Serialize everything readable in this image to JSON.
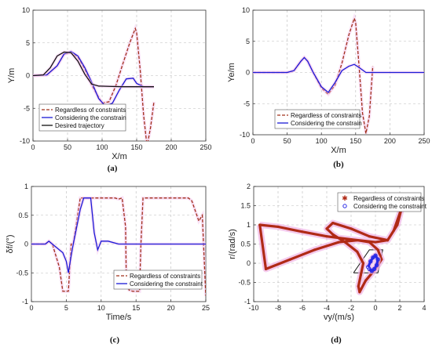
{
  "chart_data": [
    {
      "id": "a",
      "type": "line",
      "caption": "(a)",
      "xlabel": "X/m",
      "ylabel": "Y/m",
      "xlim": [
        0,
        250
      ],
      "ylim": [
        -10,
        10
      ],
      "xticks": [
        0,
        50,
        100,
        150,
        200,
        250
      ],
      "yticks": [
        -10,
        -5,
        0,
        5,
        10
      ],
      "grid": true,
      "legend_position": "lower-left",
      "series": [
        {
          "name": "Regardless of constraints",
          "color": "#a0301a",
          "dash": "4,2",
          "width": 1.3,
          "x": [
            0,
            20,
            35,
            45,
            55,
            65,
            75,
            85,
            100,
            110,
            120,
            130,
            140,
            148,
            150,
            155,
            160,
            165,
            170,
            175
          ],
          "y": [
            0,
            0.1,
            1.5,
            3.3,
            3.5,
            2.8,
            1.0,
            -1.5,
            -4.2,
            -4.0,
            -1.5,
            1.8,
            5.0,
            7.2,
            6.5,
            1.0,
            -6.0,
            -10.8,
            -8.0,
            -4.0
          ]
        },
        {
          "name": "Considering the constrain",
          "color": "#1a1ad6",
          "dash": "",
          "width": 1.3,
          "x": [
            0,
            20,
            35,
            45,
            55,
            65,
            75,
            85,
            95,
            105,
            115,
            125,
            135,
            145,
            150,
            160,
            175
          ],
          "y": [
            0,
            0.1,
            1.5,
            3.3,
            3.7,
            3.0,
            1.2,
            -1.0,
            -3.5,
            -4.7,
            -4.2,
            -2.2,
            -0.5,
            -0.4,
            -1.2,
            -1.7,
            -1.7
          ]
        },
        {
          "name": "Desired trajectory",
          "color": "#111111",
          "dash": "",
          "width": 1.3,
          "x": [
            0,
            15,
            25,
            35,
            45,
            55,
            65,
            75,
            85,
            95,
            110,
            130,
            150,
            175
          ],
          "y": [
            0,
            0.1,
            1.2,
            3.0,
            3.6,
            3.5,
            2.2,
            0.2,
            -1.3,
            -1.6,
            -1.65,
            -1.7,
            -1.7,
            -1.7
          ]
        }
      ]
    },
    {
      "id": "b",
      "type": "line",
      "caption": "(b)",
      "xlabel": "X/m",
      "ylabel": "Ye/m",
      "xlim": [
        0,
        250
      ],
      "ylim": [
        -10,
        10
      ],
      "xticks": [
        0,
        50,
        100,
        150,
        200,
        250
      ],
      "yticks": [
        -10,
        -5,
        0,
        5,
        10
      ],
      "grid": true,
      "legend_position": "lower-left",
      "series": [
        {
          "name": "Regardless of constraints",
          "color": "#a0301a",
          "dash": "4,2",
          "width": 1.3,
          "x": [
            0,
            50,
            60,
            70,
            75,
            80,
            88,
            100,
            110,
            120,
            130,
            140,
            148,
            150,
            155,
            160,
            165,
            170,
            175
          ],
          "y": [
            0,
            0,
            0.3,
            1.8,
            2.4,
            1.8,
            0,
            -2.5,
            -3.5,
            -2.0,
            1.5,
            6.0,
            8.7,
            8.0,
            1.0,
            -6.5,
            -9.8,
            -7.0,
            1.0
          ]
        },
        {
          "name": "Considering the constrain",
          "color": "#1a1ad6",
          "dash": "",
          "width": 1.3,
          "x": [
            0,
            50,
            60,
            70,
            75,
            80,
            88,
            100,
            110,
            120,
            130,
            140,
            148,
            155,
            165,
            175,
            250
          ],
          "y": [
            0,
            0,
            0.3,
            1.8,
            2.4,
            1.8,
            0,
            -2.3,
            -3.2,
            -1.6,
            0.3,
            1.0,
            1.3,
            0.8,
            0,
            0,
            0
          ]
        }
      ]
    },
    {
      "id": "c",
      "type": "line",
      "caption": "(c)",
      "xlabel": "Time/s",
      "ylabel": "δf/(°)",
      "xlim": [
        0,
        25
      ],
      "ylim": [
        -1,
        1
      ],
      "xticks": [
        0,
        5,
        10,
        15,
        20,
        25
      ],
      "yticks": [
        -1,
        -0.5,
        0,
        0.5,
        1
      ],
      "grid": true,
      "legend_position": "lower-right",
      "series": [
        {
          "name": "Regardless of constraints",
          "color": "#a0301a",
          "dash": "4,2",
          "width": 1.3,
          "x": [
            0,
            2,
            2.5,
            3,
            4,
            4.5,
            5,
            5.3,
            5.7,
            6,
            7,
            7.5,
            8.5,
            9,
            10,
            11,
            11.5,
            12,
            12.5,
            13,
            13.5,
            13.6,
            14,
            14.5,
            15.5,
            15.7,
            16,
            16.5,
            22.5,
            23,
            24,
            24.5,
            25
          ],
          "y": [
            0,
            0,
            0.05,
            0,
            -0.4,
            -0.82,
            -0.82,
            -0.82,
            0,
            0,
            0.8,
            0.8,
            0.8,
            0.8,
            0.8,
            0.8,
            0.8,
            0.8,
            0.78,
            0.8,
            0.3,
            -0.6,
            -0.8,
            -0.82,
            -0.82,
            0,
            0.8,
            0.8,
            0.8,
            0.75,
            0.4,
            0.5,
            -0.9
          ]
        },
        {
          "name": "Considering the constraint",
          "color": "#1a1ad6",
          "dash": "",
          "width": 1.3,
          "x": [
            0,
            2,
            2.5,
            3,
            4,
            4.5,
            5,
            5.3,
            5.7,
            6,
            7,
            7.5,
            8.5,
            9,
            9.5,
            10,
            10.5,
            11,
            12.5,
            13,
            13.5,
            14,
            25
          ],
          "y": [
            0,
            0,
            0.05,
            0,
            -0.1,
            -0.15,
            -0.3,
            -0.5,
            -0.2,
            0,
            0.6,
            0.8,
            0.8,
            0.2,
            -0.1,
            0.05,
            0.05,
            0.05,
            0,
            0,
            0,
            0,
            0
          ]
        }
      ]
    },
    {
      "id": "d",
      "type": "scatter",
      "caption": "(d)",
      "xlabel": "vy/(m/s)",
      "ylabel": "r/(rad/s)",
      "xlim": [
        -10,
        4
      ],
      "ylim": [
        -1,
        2
      ],
      "xticks": [
        -10,
        -8,
        -6,
        -4,
        -2,
        0,
        2,
        4
      ],
      "yticks": [
        -1,
        -0.5,
        0,
        0.5,
        1,
        1.5,
        2
      ],
      "grid": true,
      "legend_position": "top-right",
      "constraint_polygon": {
        "x": [
          -1.8,
          -0.5,
          0.6,
          0.2,
          -1.8
        ],
        "y": [
          -0.25,
          0.35,
          0.35,
          -0.25,
          -0.25
        ]
      },
      "series": [
        {
          "name": "Regardless of constraints",
          "color": "#b02a16",
          "marker": "star",
          "x": [
            -9.5,
            -8,
            -6,
            -4,
            -2,
            0,
            1,
            1.5,
            2,
            2.2,
            1.8,
            1,
            -0.5,
            -2,
            -3.5,
            -4,
            -3.5,
            -2.5,
            -1.5,
            -1,
            -1.2,
            -1.4,
            -1.3,
            -0.8,
            0,
            0.5,
            0.2,
            -0.5,
            -1.5,
            -3,
            -5,
            -7,
            -9,
            -9.5
          ],
          "y": [
            1.0,
            0.95,
            0.82,
            0.7,
            0.62,
            0.55,
            0.6,
            0.85,
            1.3,
            1.5,
            1.0,
            0.6,
            0.7,
            0.9,
            1.05,
            0.9,
            0.75,
            0.55,
            0.3,
            0,
            -0.3,
            -0.6,
            -0.75,
            -0.45,
            -0.15,
            0.1,
            0.35,
            0.55,
            0.6,
            0.55,
            0.35,
            0.1,
            -0.15,
            1.0
          ]
        },
        {
          "name": "Considering the constraint",
          "color": "#2a2ae6",
          "marker": "circle",
          "x": [
            -0.6,
            -0.4,
            -0.2,
            0,
            0.2,
            0.1,
            -0.1,
            -0.3,
            -0.5
          ],
          "y": [
            -0.1,
            0.05,
            0.15,
            0.2,
            0.1,
            -0.05,
            -0.15,
            -0.2,
            -0.15
          ]
        }
      ]
    }
  ]
}
